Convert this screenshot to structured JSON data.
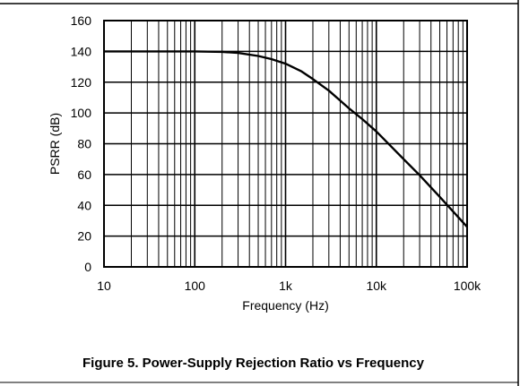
{
  "caption": "Figure 5. Power-Supply Rejection Ratio vs Frequency",
  "chart_data": {
    "type": "line",
    "title": "",
    "xlabel": "Frequency (Hz)",
    "ylabel": "PSRR (dB)",
    "x_scale": "log",
    "xlim": [
      10,
      100000
    ],
    "ylim": [
      0,
      160
    ],
    "x_ticks": [
      10,
      100,
      1000,
      10000,
      100000
    ],
    "x_tick_labels": [
      "10",
      "100",
      "1k",
      "10k",
      "100k"
    ],
    "y_ticks": [
      0,
      20,
      40,
      60,
      80,
      100,
      120,
      140,
      160
    ],
    "y_tick_labels": [
      "0",
      "20",
      "40",
      "60",
      "80",
      "100",
      "120",
      "140",
      "160"
    ],
    "grid": true,
    "line_color": "#000000",
    "series": [
      {
        "x": [
          10,
          100,
          200,
          300,
          500,
          700,
          1000,
          1500,
          2000,
          3000,
          5000,
          7000,
          10000,
          20000,
          30000,
          50000,
          70000,
          100000
        ],
        "y": [
          140,
          140,
          139.7,
          139,
          137,
          135,
          132,
          127,
          122,
          114.5,
          103,
          96,
          88,
          70,
          59.5,
          45.5,
          36,
          26
        ]
      }
    ]
  }
}
